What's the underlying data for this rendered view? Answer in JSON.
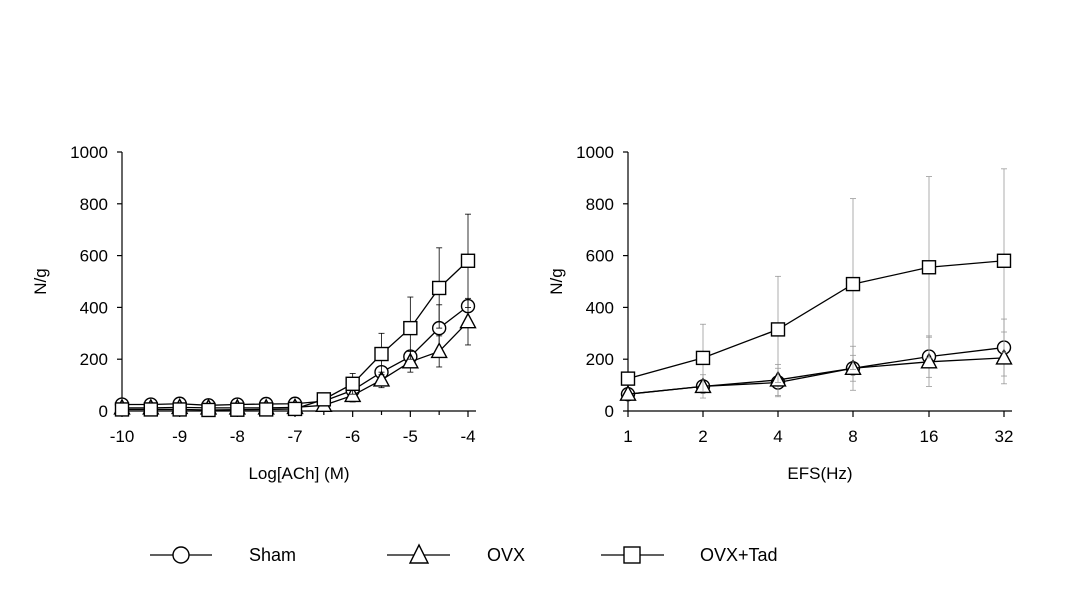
{
  "chart_data": [
    {
      "type": "line",
      "xlabel": "Log[ACh] (M)",
      "ylabel": "N/g",
      "xlim": [
        -10,
        -4
      ],
      "ylim": [
        0,
        1000
      ],
      "x_ticks": [
        "-10",
        "-9",
        "-8",
        "-7",
        "-6",
        "-5",
        "-4"
      ],
      "y_ticks": [
        "0",
        "200",
        "400",
        "600",
        "800",
        "1000"
      ],
      "x": [
        -10,
        -9.5,
        -9,
        -8.5,
        -8,
        -7.5,
        -7,
        -6.5,
        -6,
        -5.5,
        -5,
        -4.5,
        -4
      ],
      "series": [
        {
          "name": "Sham",
          "marker": "circle",
          "values": [
            25,
            25,
            28,
            22,
            25,
            27,
            28,
            38,
            80,
            150,
            210,
            320,
            405
          ],
          "errors": [
            0,
            0,
            0,
            0,
            0,
            0,
            0,
            0,
            0,
            0,
            0,
            90,
            0
          ]
        },
        {
          "name": "OVX",
          "marker": "triangle",
          "values": [
            12,
            12,
            14,
            12,
            12,
            12,
            14,
            22,
            60,
            120,
            190,
            230,
            345
          ],
          "errors": [
            0,
            0,
            0,
            0,
            0,
            0,
            0,
            0,
            25,
            30,
            40,
            60,
            90
          ]
        },
        {
          "name": "OVX+Tad",
          "marker": "square",
          "values": [
            6,
            6,
            6,
            4,
            5,
            6,
            8,
            45,
            105,
            220,
            320,
            475,
            580
          ],
          "errors": [
            0,
            0,
            0,
            0,
            0,
            0,
            0,
            0,
            40,
            80,
            120,
            155,
            180
          ]
        }
      ]
    },
    {
      "type": "line",
      "xlabel": "EFS(Hz)",
      "ylabel": "N/g",
      "ylim": [
        0,
        1000
      ],
      "categories": [
        "1",
        "2",
        "4",
        "8",
        "16",
        "32"
      ],
      "y_ticks": [
        "0",
        "200",
        "400",
        "600",
        "800",
        "1000"
      ],
      "series": [
        {
          "name": "Sham",
          "marker": "circle",
          "values": [
            65,
            95,
            110,
            165,
            210,
            245
          ],
          "errors": [
            0,
            0,
            55,
            50,
            80,
            110
          ]
        },
        {
          "name": "OVX",
          "marker": "triangle",
          "values": [
            65,
            95,
            120,
            165,
            190,
            205
          ],
          "errors": [
            0,
            45,
            60,
            85,
            95,
            100
          ]
        },
        {
          "name": "OVX+Tad",
          "marker": "square",
          "values": [
            125,
            205,
            315,
            490,
            555,
            580
          ],
          "errors": [
            0,
            130,
            205,
            330,
            350,
            355
          ]
        }
      ]
    }
  ],
  "legend": [
    {
      "label": "Sham",
      "marker": "circle"
    },
    {
      "label": "OVX",
      "marker": "triangle"
    },
    {
      "label": "OVX+Tad",
      "marker": "square"
    }
  ]
}
